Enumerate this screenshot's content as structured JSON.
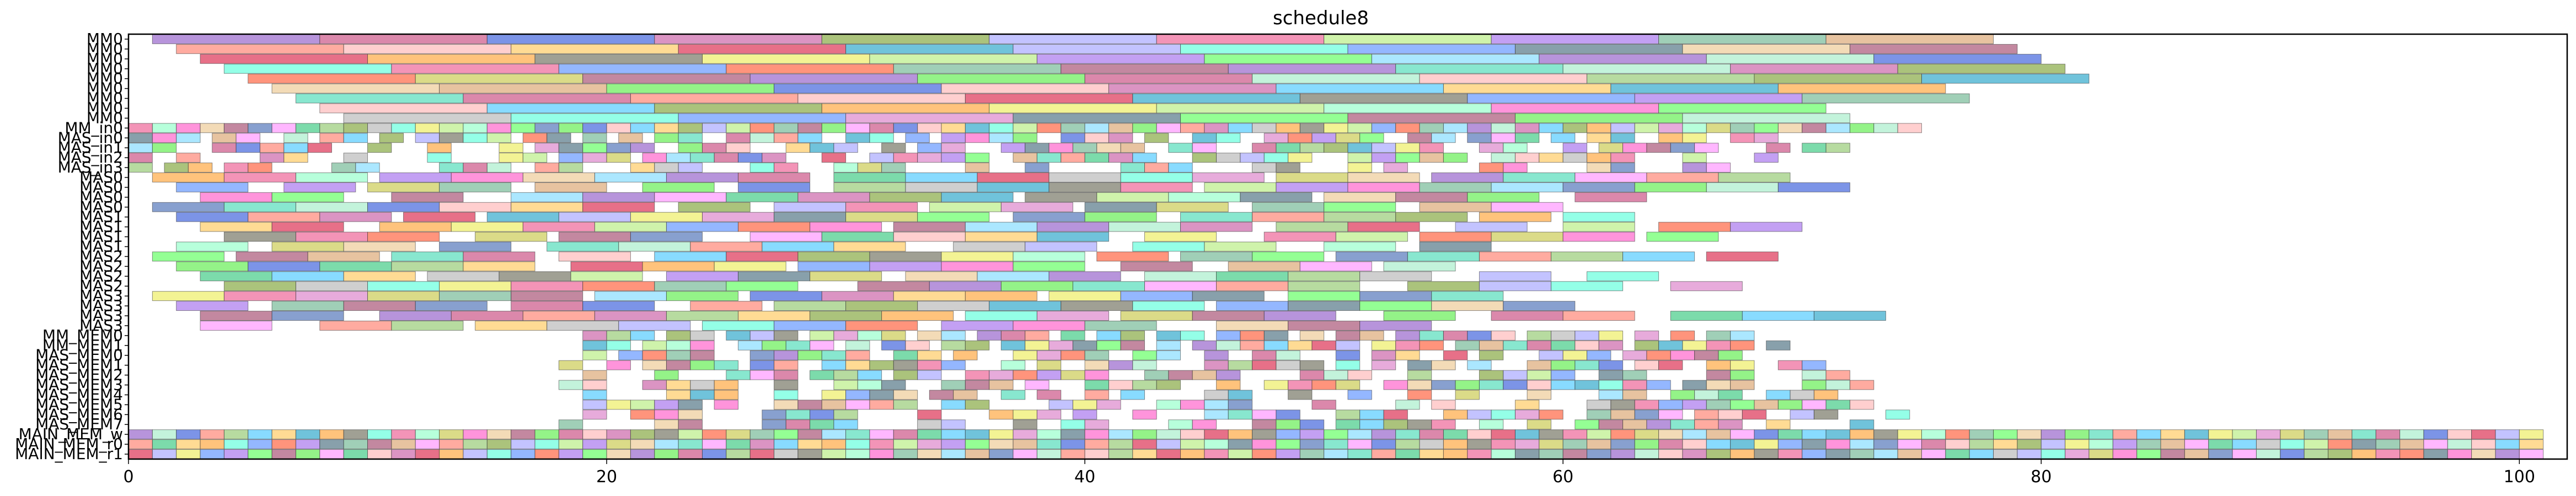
{
  "chart_data": {
    "type": "gantt",
    "title": "schedule8",
    "xlabel": "",
    "ylabel": "",
    "xlim": [
      0,
      102
    ],
    "x_ticks": [
      0,
      20,
      40,
      60,
      80,
      100
    ],
    "x_tick_labels": [
      "0",
      "20",
      "40",
      "60",
      "80",
      "100"
    ],
    "grid": false,
    "legend": "none",
    "y_labels": [
      "MM0",
      "MM0",
      "MM0",
      "MM0",
      "MM0",
      "MM0",
      "MM0",
      "MM0",
      "MM0",
      "MM_in0",
      "MAS_in0",
      "MAS_in1",
      "MAS_in2",
      "MAS_in3",
      "MAS0",
      "MAS0",
      "MAS0",
      "MAS0",
      "MAS1",
      "MAS1",
      "MAS1",
      "MAS1",
      "MAS2",
      "MAS2",
      "MAS2",
      "MAS2",
      "MAS3",
      "MAS3",
      "MAS3",
      "MAS3",
      "MM_MEM0",
      "MM_MEM1",
      "MAS_MEM0",
      "MAS_MEM1",
      "MAS_MEM2",
      "MAS_MEM3",
      "MAS_MEM4",
      "MAS_MEM5",
      "MAS_MEM6",
      "MAS_MEM7",
      "MAIN_MEM_w",
      "MAIN_MEM_r0",
      "MAIN_MEM_r1"
    ],
    "rows": [
      {
        "start": 1.0,
        "end": 78.0,
        "task_length": 7.0,
        "row_offset": 0.0,
        "min_gap": 0.0
      },
      {
        "start": 2.0,
        "end": 79.0,
        "task_length": 7.0,
        "row_offset": 2.5,
        "min_gap": 0.0
      },
      {
        "start": 3.0,
        "end": 80.0,
        "task_length": 7.0,
        "row_offset": 1.2,
        "min_gap": 0.0
      },
      {
        "start": 4.0,
        "end": 81.0,
        "task_length": 7.0,
        "row_offset": 3.1,
        "min_gap": 0.0
      },
      {
        "start": 5.0,
        "end": 82.0,
        "task_length": 7.0,
        "row_offset": 0.7,
        "min_gap": 0.0
      },
      {
        "start": 6.0,
        "end": 80.0,
        "task_length": 7.0,
        "row_offset": 4.0,
        "min_gap": 0.0
      },
      {
        "start": 7.0,
        "end": 78.0,
        "task_length": 7.0,
        "row_offset": 1.9,
        "min_gap": 0.0
      },
      {
        "start": 8.0,
        "end": 77.0,
        "task_length": 7.0,
        "row_offset": 3.4,
        "min_gap": 0.0
      },
      {
        "start": 9.0,
        "end": 77.0,
        "task_length": 7.0,
        "row_offset": 0.3,
        "min_gap": 0.0
      },
      {
        "start": 0.0,
        "end": 75.0,
        "task_length": 1.0,
        "row_offset": 0.0,
        "min_gap": 0.0
      },
      {
        "start": 0.0,
        "end": 70.0,
        "task_length": 1.0,
        "row_offset": 0.5,
        "min_gap": 1.0
      },
      {
        "start": 0.0,
        "end": 72.0,
        "task_length": 1.0,
        "row_offset": 0.2,
        "min_gap": 2.0
      },
      {
        "start": 0.0,
        "end": 70.0,
        "task_length": 1.0,
        "row_offset": 0.7,
        "min_gap": 2.5
      },
      {
        "start": 0.0,
        "end": 70.0,
        "task_length": 1.0,
        "row_offset": 0.4,
        "min_gap": 3.0
      },
      {
        "start": 1.0,
        "end": 72.0,
        "task_length": 3.0,
        "row_offset": 0.0,
        "min_gap": 1.0
      },
      {
        "start": 2.0,
        "end": 73.0,
        "task_length": 3.0,
        "row_offset": 1.0,
        "min_gap": 1.5
      },
      {
        "start": 3.0,
        "end": 66.0,
        "task_length": 3.0,
        "row_offset": 0.5,
        "min_gap": 2.0
      },
      {
        "start": 1.0,
        "end": 62.0,
        "task_length": 3.0,
        "row_offset": 1.5,
        "min_gap": 2.5
      },
      {
        "start": 2.0,
        "end": 65.0,
        "task_length": 3.0,
        "row_offset": 0.3,
        "min_gap": 1.0
      },
      {
        "start": 3.0,
        "end": 70.0,
        "task_length": 3.0,
        "row_offset": 1.3,
        "min_gap": 1.5
      },
      {
        "start": 4.0,
        "end": 68.0,
        "task_length": 3.0,
        "row_offset": 0.8,
        "min_gap": 2.0
      },
      {
        "start": 2.0,
        "end": 60.0,
        "task_length": 3.0,
        "row_offset": 1.8,
        "min_gap": 2.5
      },
      {
        "start": 1.0,
        "end": 70.0,
        "task_length": 3.0,
        "row_offset": 0.6,
        "min_gap": 1.0
      },
      {
        "start": 2.0,
        "end": 56.0,
        "task_length": 3.0,
        "row_offset": 1.6,
        "min_gap": 1.5
      },
      {
        "start": 3.0,
        "end": 64.0,
        "task_length": 3.0,
        "row_offset": 0.2,
        "min_gap": 2.0
      },
      {
        "start": 4.0,
        "end": 68.0,
        "task_length": 3.0,
        "row_offset": 1.2,
        "min_gap": 2.5
      },
      {
        "start": 1.0,
        "end": 60.0,
        "task_length": 3.0,
        "row_offset": 0.9,
        "min_gap": 1.0
      },
      {
        "start": 2.0,
        "end": 62.0,
        "task_length": 3.0,
        "row_offset": 1.9,
        "min_gap": 1.5
      },
      {
        "start": 3.0,
        "end": 74.0,
        "task_length": 3.0,
        "row_offset": 0.4,
        "min_gap": 2.0
      },
      {
        "start": 3.0,
        "end": 55.0,
        "task_length": 3.0,
        "row_offset": 1.4,
        "min_gap": 2.5
      },
      {
        "start": 19.0,
        "end": 68.0,
        "task_length": 1.0,
        "row_offset": 0.0,
        "min_gap": 0.5
      },
      {
        "start": 19.0,
        "end": 70.0,
        "task_length": 1.0,
        "row_offset": 0.3,
        "min_gap": 1.0
      },
      {
        "start": 19.0,
        "end": 69.0,
        "task_length": 1.0,
        "row_offset": 0.6,
        "min_gap": 1.5
      },
      {
        "start": 18.0,
        "end": 71.0,
        "task_length": 1.0,
        "row_offset": 0.2,
        "min_gap": 2.0
      },
      {
        "start": 19.0,
        "end": 73.0,
        "task_length": 1.0,
        "row_offset": 0.5,
        "min_gap": 2.5
      },
      {
        "start": 18.0,
        "end": 75.0,
        "task_length": 1.0,
        "row_offset": 0.8,
        "min_gap": 2.0
      },
      {
        "start": 19.0,
        "end": 72.0,
        "task_length": 1.0,
        "row_offset": 0.1,
        "min_gap": 2.5
      },
      {
        "start": 19.0,
        "end": 74.0,
        "task_length": 1.0,
        "row_offset": 0.4,
        "min_gap": 3.0
      },
      {
        "start": 19.0,
        "end": 75.0,
        "task_length": 1.0,
        "row_offset": 0.7,
        "min_gap": 2.5
      },
      {
        "start": 18.0,
        "end": 73.0,
        "task_length": 1.0,
        "row_offset": 0.3,
        "min_gap": 3.0
      },
      {
        "start": 0.0,
        "end": 101.5,
        "task_length": 1.0,
        "row_offset": 0.0,
        "min_gap": 0.0
      },
      {
        "start": 0.0,
        "end": 101.5,
        "task_length": 1.0,
        "row_offset": 0.5,
        "min_gap": 0.0
      },
      {
        "start": 0.0,
        "end": 101.5,
        "task_length": 1.0,
        "row_offset": 0.2,
        "min_gap": 0.0
      }
    ],
    "palette": [
      "#9966cc",
      "#66ee55",
      "#55ddbb",
      "#ff99ff",
      "#cc5588",
      "#aaeecc",
      "#4466dd",
      "#ff8877",
      "#44cc88",
      "#ffbbbb",
      "#cc66aa",
      "#99cc77",
      "#55ccff",
      "#ffcc66",
      "#dd3355",
      "#88aa44",
      "#bbbbbb",
      "#33aacc",
      "#ffaa44",
      "#aaaaff",
      "#777766",
      "#66ffdd",
      "#eeee66",
      "#ee6699",
      "#bbee88",
      "#6699ff",
      "#dd88cc",
      "#99ffcc",
      "#ff6644",
      "#aa77ee",
      "#557788",
      "#cccc55",
      "#ff66cc",
      "#77bb99",
      "#66ff66",
      "#eecc99",
      "#aa5577",
      "#88ddff",
      "#ddaa77",
      "#5577bb"
    ],
    "bar_opacity": 0.7
  }
}
